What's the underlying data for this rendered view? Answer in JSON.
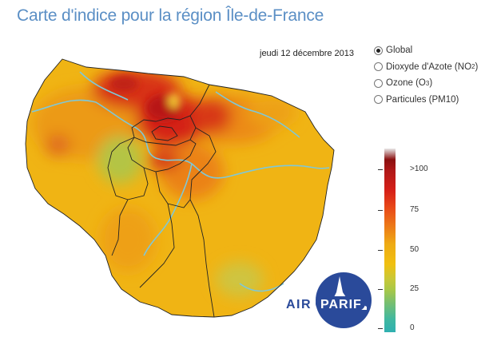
{
  "title": "Carte d'indice pour la région Île-de-France",
  "date": "jeudi 12 décembre 2013",
  "pollutants": [
    {
      "label": "Global",
      "sub": "",
      "after": "",
      "selected": true
    },
    {
      "label": "Dioxyde d'Azote (NO",
      "sub": "2",
      "after": ")",
      "selected": false
    },
    {
      "label": "Ozone (O",
      "sub": "3",
      "after": ")",
      "selected": false
    },
    {
      "label": "Particules (PM10)",
      "sub": "",
      "after": "",
      "selected": false
    }
  ],
  "legend": {
    "labels": [
      ">100",
      "75",
      "50",
      "25",
      "0"
    ]
  },
  "logo": {
    "text": "AIRPARIF"
  },
  "colors": {
    "title": "#5b8fc5",
    "dominant_orange": "#f0b414",
    "hotspot_red": "#d62018",
    "low_green": "#a8c848",
    "river": "#7ec8d8",
    "logo_navy": "#2a4a9a"
  }
}
